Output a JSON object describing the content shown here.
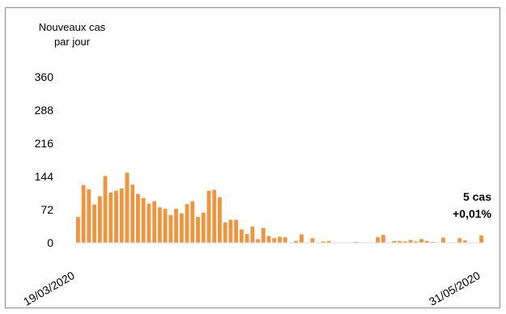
{
  "chart_data": {
    "type": "bar",
    "ylabel": "Nouveaux cas\npar jour",
    "yticks": [
      "360",
      "288",
      "216",
      "144",
      "72",
      "0"
    ],
    "ylim": [
      0,
      360
    ],
    "x_start_label": "19/03/2020",
    "x_end_label": "31/05/2020",
    "bar_color": "#f0953f",
    "values": [
      56,
      125,
      116,
      83,
      101,
      145,
      109,
      113,
      118,
      152,
      126,
      106,
      97,
      85,
      90,
      77,
      74,
      60,
      74,
      64,
      84,
      90,
      56,
      65,
      113,
      115,
      99,
      44,
      50,
      50,
      29,
      19,
      35,
      8,
      32,
      15,
      10,
      13,
      12,
      0,
      4,
      18,
      0,
      10,
      0,
      3,
      4,
      0,
      0,
      0,
      0,
      2,
      0,
      0,
      0,
      12,
      17,
      0,
      4,
      4,
      3,
      6,
      3,
      8,
      4,
      2,
      0,
      11,
      0,
      0,
      10,
      5,
      0,
      0,
      16
    ],
    "annotation": {
      "line1": "5 cas",
      "line2": "+0,01%"
    }
  }
}
